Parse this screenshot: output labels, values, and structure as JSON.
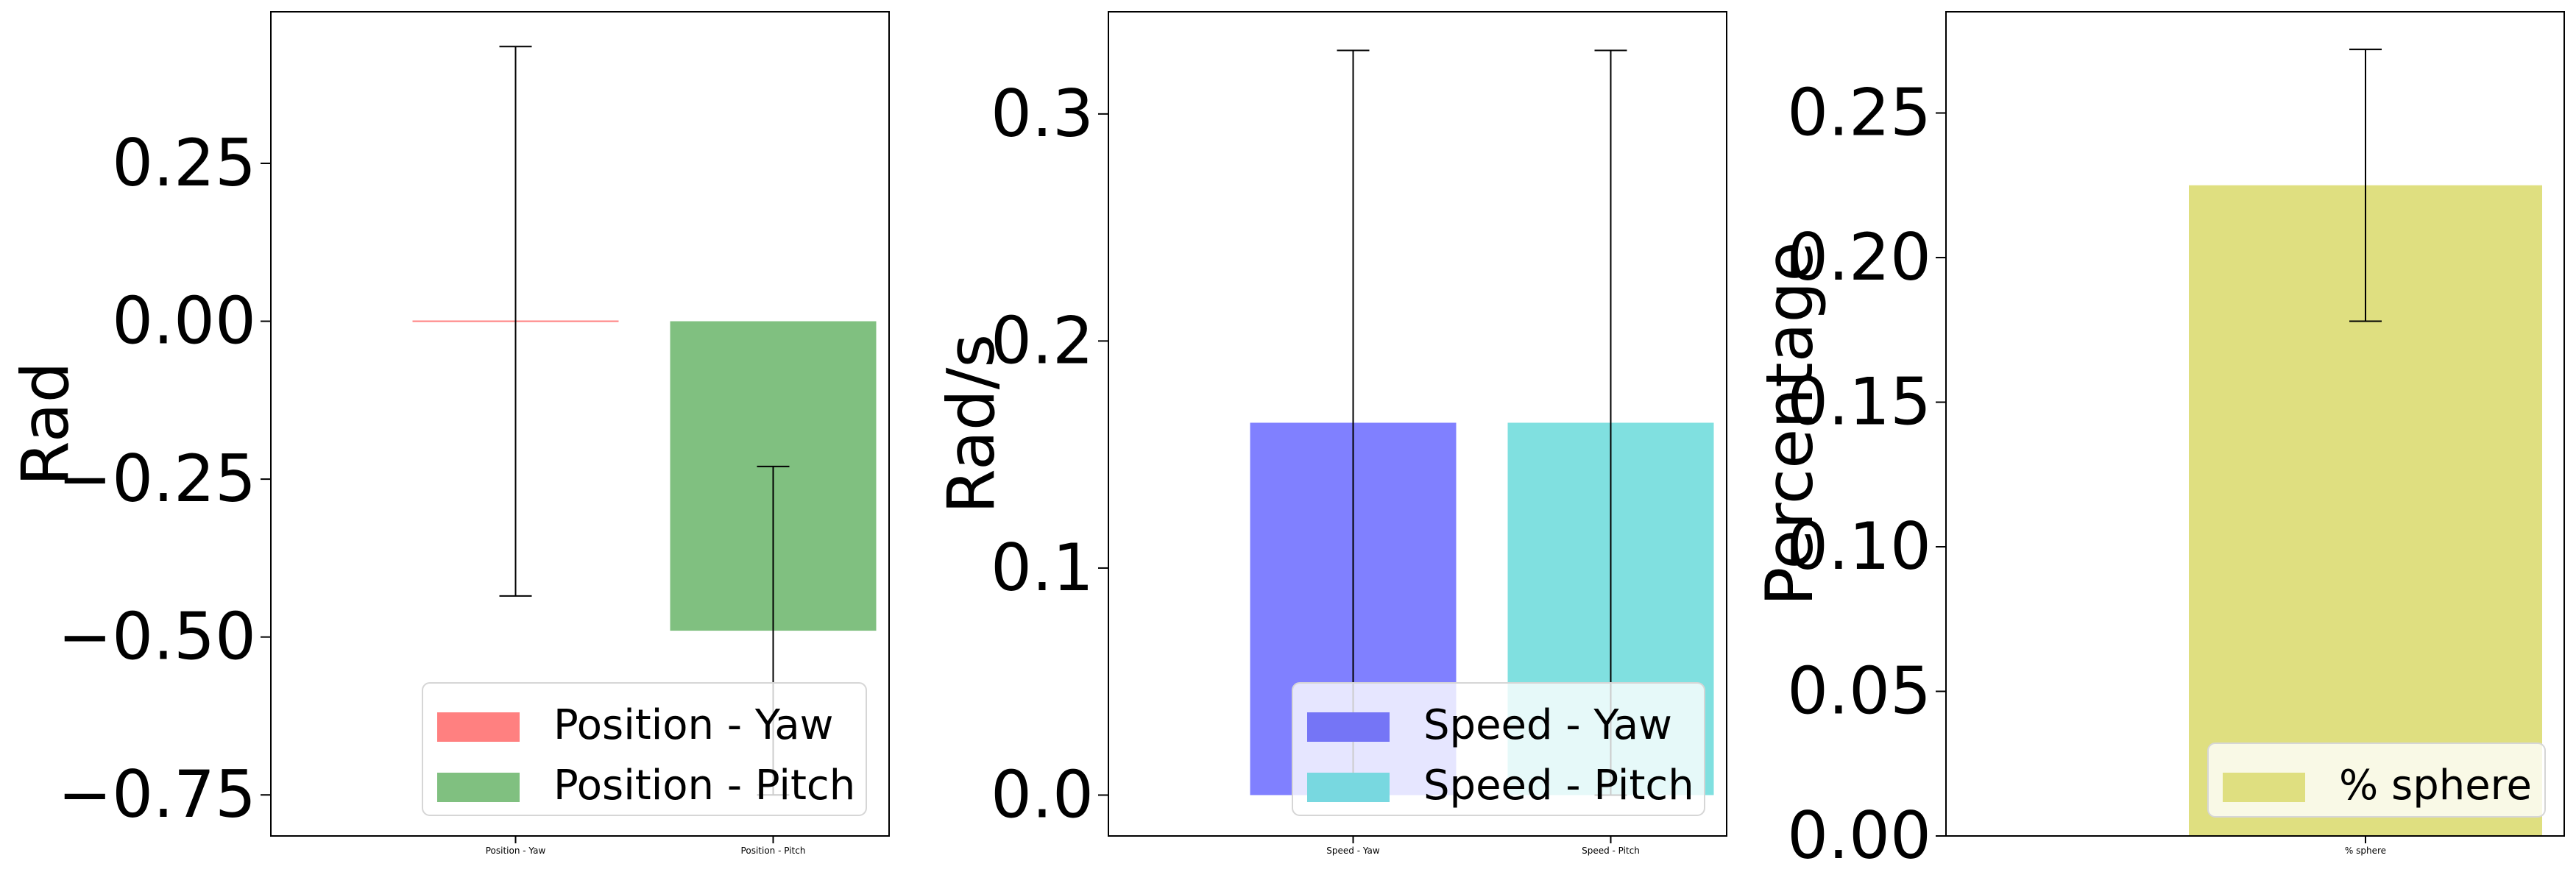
{
  "chart_data": [
    {
      "type": "bar",
      "categories": [
        "Position - Yaw",
        "Position - Pitch"
      ],
      "values": [
        0.0,
        -0.49
      ],
      "errors": [
        0.435,
        0.26
      ],
      "colors": [
        "#ff8080",
        "#80c080"
      ],
      "ylabel": "Rad",
      "ylim": [
        -0.815,
        0.49
      ],
      "yticks": [
        0.25,
        0.0,
        -0.25,
        -0.5,
        -0.75
      ],
      "ytick_labels": [
        "0.25",
        "0.00",
        "−0.25",
        "−0.50",
        "−0.75"
      ],
      "legend": [
        "Position - Yaw",
        "Position - Pitch"
      ],
      "legend_position": "lower right"
    },
    {
      "type": "bar",
      "categories": [
        "Speed - Yaw",
        "Speed - Pitch"
      ],
      "values": [
        0.164,
        0.164
      ],
      "errors": [
        0.164,
        0.164
      ],
      "colors": [
        "#8080ff",
        "#80e0e0"
      ],
      "legend_colors": [
        "#7575f6",
        "#78d8e0"
      ],
      "ylabel": "Rad/s",
      "ylim": [
        -0.018,
        0.345
      ],
      "yticks": [
        0.0,
        0.1,
        0.2,
        0.3
      ],
      "ytick_labels": [
        "0.0",
        "0.1",
        "0.2",
        "0.3"
      ],
      "legend": [
        "Speed - Yaw",
        "Speed - Pitch"
      ],
      "legend_position": "lower right"
    },
    {
      "type": "bar",
      "categories": [
        "% sphere"
      ],
      "values": [
        0.225
      ],
      "errors": [
        0.047
      ],
      "colors": [
        "#dfdf80"
      ],
      "ylabel": "Percentage",
      "ylim": [
        0.0,
        0.285
      ],
      "yticks": [
        0.0,
        0.05,
        0.1,
        0.15,
        0.2,
        0.25
      ],
      "ytick_labels": [
        "0.00",
        "0.05",
        "0.10",
        "0.15",
        "0.20",
        "0.25"
      ],
      "legend": [
        "% sphere"
      ],
      "legend_position": "lower right"
    }
  ]
}
